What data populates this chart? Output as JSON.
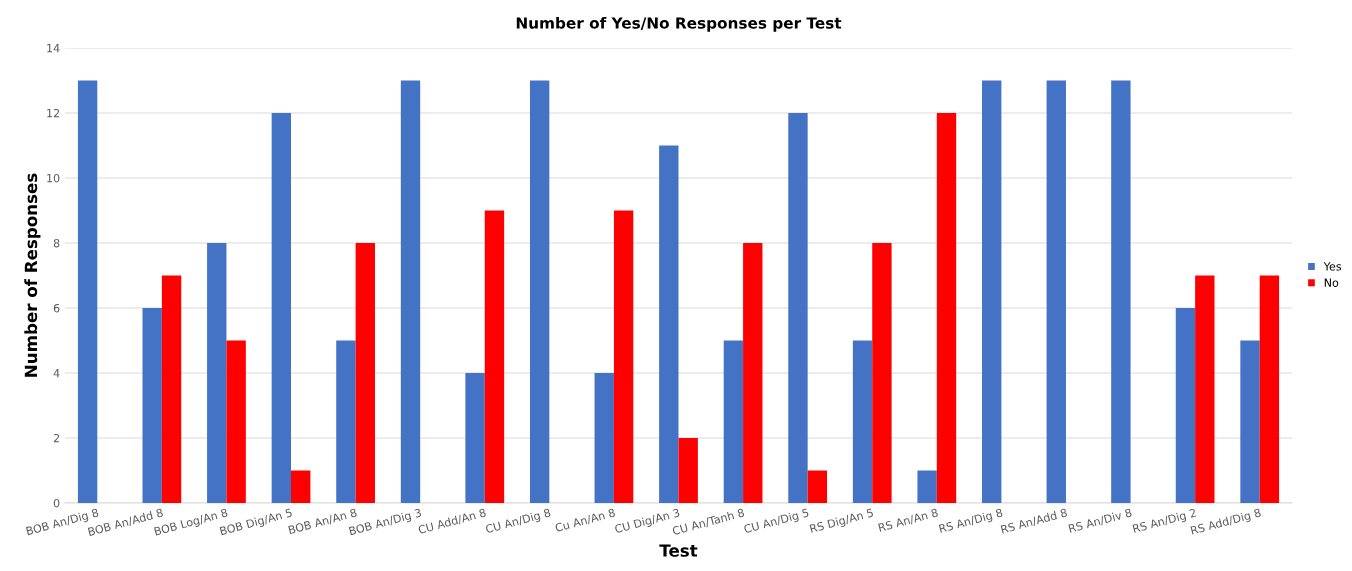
{
  "chart_data": {
    "type": "bar",
    "title": "Number of Yes/No Responses per Test",
    "xlabel": "Test",
    "ylabel": "Number of Responses",
    "categories": [
      "BOB An/Dig 8",
      "BOB An/Add 8",
      "BOB Log/An 8",
      "BOB Dig/An 5",
      "BOB An/An 8",
      "BOB An/Dig 3",
      "CU Add/An 8",
      "CU An/Dig 8",
      "Cu An/An 8",
      "CU Dig/An 3",
      "CU An/Tanh 8",
      "CU An/Dig 5",
      "RS Dig/An 5",
      "RS An/An 8",
      "RS An/Dig 8",
      "RS An/Add 8",
      "RS An/Div 8",
      "RS An/Dig 2",
      "RS Add/Dig 8"
    ],
    "series": [
      {
        "name": "Yes",
        "color": "#4472c4",
        "values": [
          13,
          6,
          8,
          12,
          5,
          13,
          4,
          13,
          4,
          11,
          5,
          12,
          5,
          1,
          13,
          13,
          13,
          6,
          5
        ]
      },
      {
        "name": "No",
        "color": "#ff0000",
        "values": [
          0,
          7,
          5,
          1,
          8,
          0,
          9,
          0,
          9,
          2,
          8,
          1,
          8,
          12,
          0,
          0,
          0,
          7,
          7
        ]
      }
    ],
    "ylim": [
      0,
      14
    ],
    "yticks": [
      0,
      2,
      4,
      6,
      8,
      10,
      12,
      14
    ],
    "grid": "y",
    "legend": "right"
  }
}
